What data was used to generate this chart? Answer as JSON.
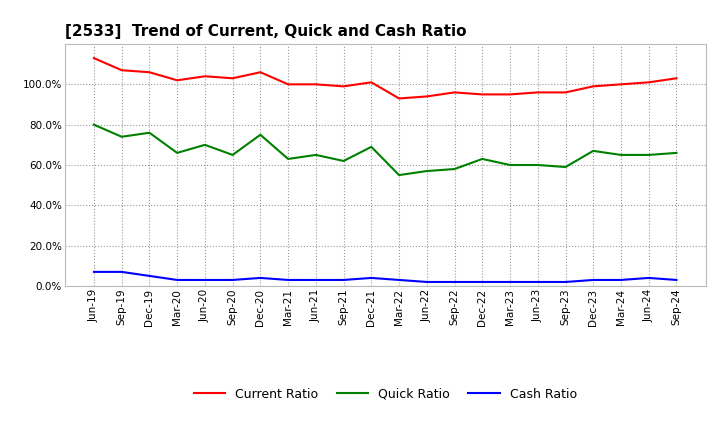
{
  "title": "[2533]  Trend of Current, Quick and Cash Ratio",
  "x_labels": [
    "Jun-19",
    "Sep-19",
    "Dec-19",
    "Mar-20",
    "Jun-20",
    "Sep-20",
    "Dec-20",
    "Mar-21",
    "Jun-21",
    "Sep-21",
    "Dec-21",
    "Mar-22",
    "Jun-22",
    "Sep-22",
    "Dec-22",
    "Mar-23",
    "Jun-23",
    "Sep-23",
    "Dec-23",
    "Mar-24",
    "Jun-24",
    "Sep-24"
  ],
  "current_ratio": [
    1.13,
    1.07,
    1.06,
    1.02,
    1.04,
    1.03,
    1.06,
    1.0,
    1.0,
    0.99,
    1.01,
    0.93,
    0.94,
    0.96,
    0.95,
    0.95,
    0.96,
    0.96,
    0.99,
    1.0,
    1.01,
    1.03
  ],
  "quick_ratio": [
    0.8,
    0.74,
    0.76,
    0.66,
    0.7,
    0.65,
    0.75,
    0.63,
    0.65,
    0.62,
    0.69,
    0.55,
    0.57,
    0.58,
    0.63,
    0.6,
    0.6,
    0.59,
    0.67,
    0.65,
    0.65,
    0.66
  ],
  "cash_ratio": [
    0.07,
    0.07,
    0.05,
    0.03,
    0.03,
    0.03,
    0.04,
    0.03,
    0.03,
    0.03,
    0.04,
    0.03,
    0.02,
    0.02,
    0.02,
    0.02,
    0.02,
    0.02,
    0.03,
    0.03,
    0.04,
    0.03
  ],
  "current_color": "#FF0000",
  "quick_color": "#008000",
  "cash_color": "#0000FF",
  "line_width": 1.5,
  "ylim": [
    0.0,
    1.2
  ],
  "yticks": [
    0.0,
    0.2,
    0.4,
    0.6,
    0.8,
    1.0
  ],
  "background_color": "#FFFFFF",
  "plot_bg_color": "#FFFFFF",
  "grid_color": "#999999",
  "title_fontsize": 11,
  "legend_fontsize": 9,
  "tick_fontsize": 7.5
}
